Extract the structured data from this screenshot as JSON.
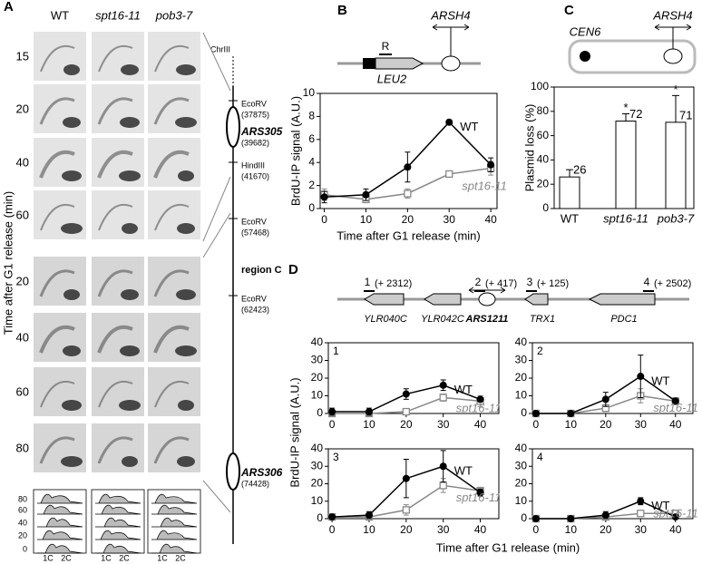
{
  "panel_a": {
    "label": "A",
    "columns": [
      "WT",
      "spt16-11",
      "pob3-7"
    ],
    "times": [
      "15",
      "20",
      "40",
      "60",
      "20",
      "40",
      "60",
      "80"
    ],
    "y_label": "Time after G1 release (min)",
    "chromosome": "ChrIII",
    "map_labels": [
      {
        "name": "EcoRV",
        "pos": "(37875)"
      },
      {
        "name": "ARS305",
        "pos": "(39682)"
      },
      {
        "name": "HindIII",
        "pos": "(41670)"
      },
      {
        "name": "EcoRV",
        "pos": "(57468)"
      },
      {
        "name": "EcoRV",
        "pos": "(62423)"
      },
      {
        "name": "ARS306",
        "pos": "(74428)"
      }
    ],
    "region": "region C",
    "facs_yticks": [
      "80",
      "60",
      "40",
      "20",
      "0"
    ],
    "facs_xticks": [
      "1C",
      "2C"
    ]
  },
  "panel_b": {
    "label": "B",
    "site": "R",
    "origin": "ARSH4",
    "gene": "LEU2"
  },
  "panel_c": {
    "label": "C",
    "centromere": "CEN6",
    "origin": "ARSH4",
    "asterisk": "*"
  },
  "panel_d": {
    "label": "D",
    "y_label": "BrdU-IP signal (A.U.)",
    "x_label": "Time after G1 release (min)",
    "probes": [
      {
        "n": "1",
        "pos": "(+ 2312)"
      },
      {
        "n": "2",
        "pos": "(+ 417)"
      },
      {
        "n": "3",
        "pos": "(+ 125)"
      },
      {
        "n": "4",
        "pos": "(+ 2502)"
      }
    ],
    "genes": [
      "YLR040C",
      "YLR042C",
      "ARS1211",
      "TRX1",
      "PDC1"
    ]
  },
  "chart_data": [
    {
      "type": "line",
      "y_label": "BrdU-IP signal (A.U.)",
      "x_label": "Time after G1 release (min)",
      "x": [
        0,
        10,
        20,
        30,
        40
      ],
      "xlim": [
        -1,
        41.5
      ],
      "xticks": [
        0,
        10,
        20,
        30,
        40
      ],
      "ylim": [
        0,
        10
      ],
      "yticks": [
        0,
        2,
        4,
        6,
        8,
        10
      ],
      "series": [
        {
          "name": "WT",
          "color": "#000000",
          "marker": "circle",
          "values": [
            1,
            1.2,
            3.6,
            7.5,
            3.8
          ],
          "errors": [
            0.5,
            0.5,
            1.3,
            0,
            0.6
          ]
        },
        {
          "name": "spt16-11",
          "color": "#888888",
          "marker": "square",
          "values": [
            1.2,
            0.8,
            1.3,
            3,
            3.5
          ],
          "errors": [
            0.5,
            0.3,
            0.4,
            0.2,
            0.6
          ]
        }
      ]
    },
    {
      "type": "bar",
      "y_label": "Plasmid loss (%)",
      "categories": [
        "WT",
        "spt16-11",
        "pob3-7"
      ],
      "values": [
        26,
        72,
        71
      ],
      "errors": [
        6,
        6,
        22
      ],
      "color": "#ffffff",
      "ylim": [
        0,
        100
      ],
      "yticks": [
        0,
        20,
        40,
        60,
        80,
        100
      ]
    },
    {
      "type": "line",
      "title": "1",
      "x": [
        0,
        10,
        20,
        30,
        40
      ],
      "xlim": [
        -1,
        45
      ],
      "xticks": [
        0,
        10,
        20,
        30,
        40
      ],
      "ylim": [
        0,
        40
      ],
      "yticks": [
        0,
        10,
        20,
        30,
        40
      ],
      "series": [
        {
          "name": "WT",
          "color": "#000000",
          "marker": "circle",
          "values": [
            1,
            1,
            11,
            16,
            8
          ],
          "errors": [
            2,
            2,
            3,
            3,
            1
          ]
        },
        {
          "name": "spt16-11",
          "color": "#888888",
          "marker": "square",
          "values": [
            0,
            0,
            1,
            9,
            7
          ],
          "errors": [
            1,
            1,
            1,
            2,
            3
          ]
        }
      ]
    },
    {
      "type": "line",
      "title": "2",
      "x": [
        0,
        10,
        20,
        30,
        40
      ],
      "xlim": [
        -1,
        45
      ],
      "xticks": [
        0,
        10,
        20,
        30,
        40
      ],
      "ylim": [
        0,
        40
      ],
      "yticks": [
        0,
        10,
        20,
        30,
        40
      ],
      "series": [
        {
          "name": "WT",
          "color": "#000000",
          "marker": "circle",
          "values": [
            0,
            0,
            8,
            21,
            7
          ],
          "errors": [
            1,
            1,
            4,
            12,
            1
          ]
        },
        {
          "name": "spt16-11",
          "color": "#888888",
          "marker": "square",
          "values": [
            0,
            0,
            3,
            10,
            7
          ],
          "errors": [
            1,
            1,
            2,
            4,
            2
          ]
        }
      ]
    },
    {
      "type": "line",
      "title": "3",
      "x": [
        0,
        10,
        20,
        30,
        40
      ],
      "xlim": [
        -1,
        45
      ],
      "xticks": [
        0,
        10,
        20,
        30,
        40
      ],
      "ylim": [
        0,
        40
      ],
      "yticks": [
        0,
        10,
        20,
        30,
        40
      ],
      "series": [
        {
          "name": "WT",
          "color": "#000000",
          "marker": "circle",
          "values": [
            1,
            2,
            23,
            30,
            15
          ],
          "errors": [
            1,
            2,
            11,
            9,
            2
          ]
        },
        {
          "name": "spt16-11",
          "color": "#888888",
          "marker": "square",
          "values": [
            1,
            1,
            5,
            19,
            16
          ],
          "errors": [
            1,
            1,
            3,
            4,
            2
          ]
        }
      ]
    },
    {
      "type": "line",
      "title": "4",
      "x": [
        0,
        10,
        20,
        30,
        40
      ],
      "xlim": [
        -1,
        45
      ],
      "xticks": [
        0,
        10,
        20,
        30,
        40
      ],
      "ylim": [
        0,
        40
      ],
      "yticks": [
        0,
        10,
        20,
        30,
        40
      ],
      "series": [
        {
          "name": "WT",
          "color": "#000000",
          "marker": "circle",
          "values": [
            0,
            0,
            2,
            10,
            1
          ],
          "errors": [
            1,
            1,
            2,
            2,
            1
          ]
        },
        {
          "name": "spt16-11",
          "color": "#888888",
          "marker": "square",
          "values": [
            0,
            0,
            1,
            3,
            3
          ],
          "errors": [
            1,
            1,
            1,
            1,
            1
          ]
        }
      ]
    }
  ]
}
